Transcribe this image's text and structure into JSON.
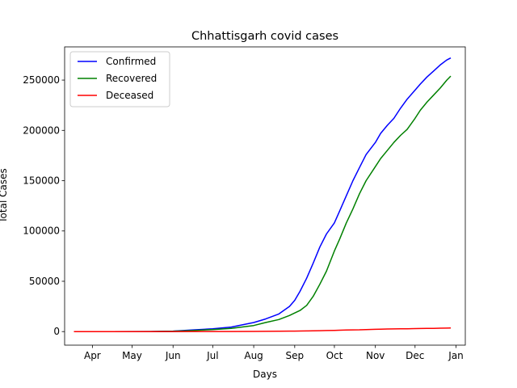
{
  "chart_data": {
    "type": "line",
    "title": "Chhattisgarh covid cases",
    "xlabel": "Days",
    "ylabel": "Total Cases",
    "x_ticks": [
      "Apr",
      "May",
      "Jun",
      "Jul",
      "Aug",
      "Sep",
      "Oct",
      "Nov",
      "Dec",
      "Jan"
    ],
    "x_tick_dates": [
      "2020-04-01",
      "2020-05-01",
      "2020-06-01",
      "2020-07-01",
      "2020-08-01",
      "2020-09-01",
      "2020-10-01",
      "2020-11-01",
      "2020-12-01",
      "2021-01-01"
    ],
    "y_ticks": [
      0,
      50000,
      100000,
      150000,
      200000,
      250000
    ],
    "y_tick_labels": [
      "0",
      "50000",
      "100000",
      "150000",
      "200000",
      "250000"
    ],
    "xlim": [
      "2020-03-11",
      "2021-01-08"
    ],
    "ylim": [
      -13500,
      283000
    ],
    "grid": false,
    "legend_position": "top-left",
    "x": [
      "2020-03-18",
      "2020-04-15",
      "2020-05-15",
      "2020-06-01",
      "2020-06-15",
      "2020-07-01",
      "2020-07-15",
      "2020-08-01",
      "2020-08-10",
      "2020-08-20",
      "2020-08-28",
      "2020-09-01",
      "2020-09-05",
      "2020-09-10",
      "2020-09-15",
      "2020-09-20",
      "2020-09-25",
      "2020-10-01",
      "2020-10-05",
      "2020-10-10",
      "2020-10-15",
      "2020-10-20",
      "2020-10-25",
      "2020-11-01",
      "2020-11-05",
      "2020-11-10",
      "2020-11-15",
      "2020-11-20",
      "2020-11-25",
      "2020-12-01",
      "2020-12-05",
      "2020-12-10",
      "2020-12-15",
      "2020-12-20",
      "2020-12-25",
      "2020-12-28"
    ],
    "series": [
      {
        "name": "Confirmed",
        "color": "#0000ff",
        "values": [
          1,
          20,
          100,
          500,
          1500,
          2800,
          4500,
          9000,
          12500,
          17500,
          25000,
          31000,
          40000,
          53000,
          68000,
          84000,
          97000,
          108000,
          120000,
          135000,
          150000,
          163000,
          176000,
          188000,
          197000,
          205000,
          212000,
          222000,
          231000,
          240000,
          246000,
          253000,
          259000,
          265000,
          270000,
          272000
        ]
      },
      {
        "name": "Recovered",
        "color": "#008000",
        "values": [
          0,
          10,
          50,
          300,
          1000,
          2000,
          3200,
          6000,
          9000,
          12000,
          16000,
          18500,
          21000,
          26000,
          35000,
          47000,
          60000,
          80000,
          92000,
          108000,
          122000,
          137000,
          150000,
          164000,
          172000,
          180000,
          188000,
          195000,
          201000,
          212000,
          220000,
          228000,
          235000,
          242000,
          250000,
          254000
        ]
      },
      {
        "name": "Deceased",
        "color": "#ff0000",
        "values": [
          0,
          0,
          5,
          20,
          40,
          70,
          110,
          200,
          250,
          350,
          450,
          500,
          550,
          650,
          750,
          900,
          1050,
          1200,
          1350,
          1500,
          1650,
          1800,
          2000,
          2250,
          2400,
          2550,
          2650,
          2750,
          2850,
          2950,
          3050,
          3150,
          3250,
          3350,
          3450,
          3500
        ]
      }
    ]
  }
}
